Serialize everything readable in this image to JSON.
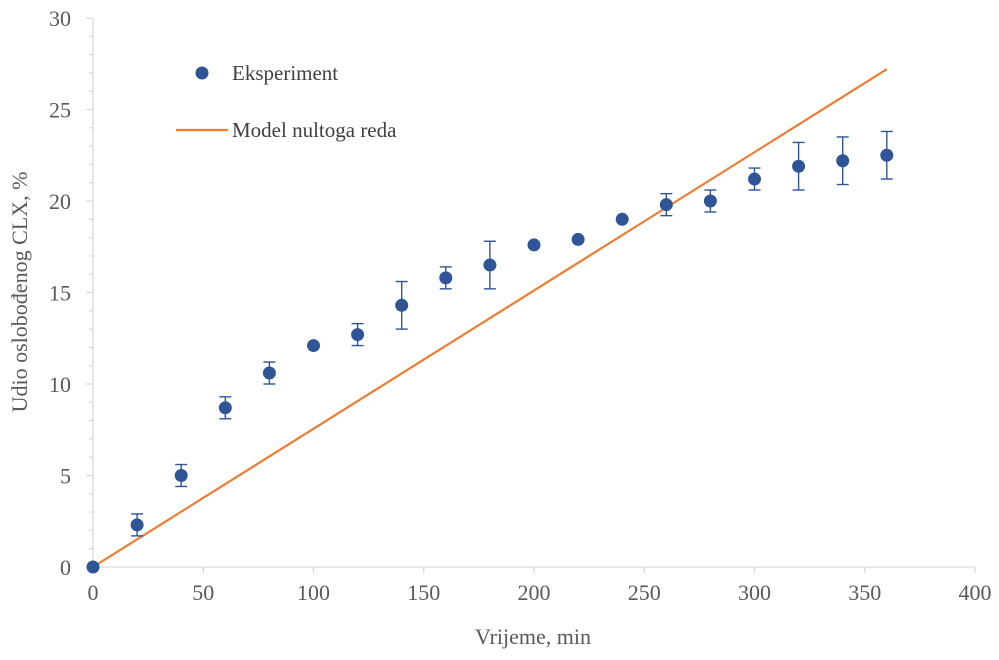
{
  "chart_data": {
    "type": "scatter",
    "title": "",
    "xlabel": "Vrijeme, min",
    "ylabel": "Udio oslobođenog CLX, %",
    "xlim": [
      0,
      400
    ],
    "ylim": [
      0,
      30
    ],
    "x_ticks": [
      0,
      50,
      100,
      150,
      200,
      250,
      300,
      350,
      400
    ],
    "y_ticks": [
      0,
      5,
      10,
      15,
      20,
      25,
      30
    ],
    "grid": false,
    "legend_position": "top-left",
    "colors": {
      "experiment": "#2F5597",
      "model": "#ED7D31",
      "axis": "#D9D9D9",
      "text": "#595959"
    },
    "series": [
      {
        "name": "Eksperiment",
        "kind": "scatter",
        "x": [
          0,
          20,
          40,
          60,
          80,
          100,
          120,
          140,
          160,
          180,
          200,
          220,
          240,
          260,
          280,
          300,
          320,
          340,
          360
        ],
        "y": [
          0,
          2.3,
          5.0,
          8.7,
          10.6,
          12.1,
          12.7,
          14.3,
          15.8,
          16.5,
          17.6,
          17.9,
          19.0,
          19.8,
          20.0,
          21.2,
          21.9,
          22.2,
          22.5
        ],
        "error": [
          0,
          0.6,
          0.6,
          0.6,
          0.6,
          0,
          0.6,
          1.3,
          0.6,
          1.3,
          0,
          0,
          0,
          0.6,
          0.6,
          0.6,
          1.3,
          1.3,
          1.3
        ]
      },
      {
        "name": "Model nultoga reda",
        "kind": "line",
        "x": [
          0,
          360
        ],
        "y": [
          0,
          27.2
        ]
      }
    ]
  }
}
